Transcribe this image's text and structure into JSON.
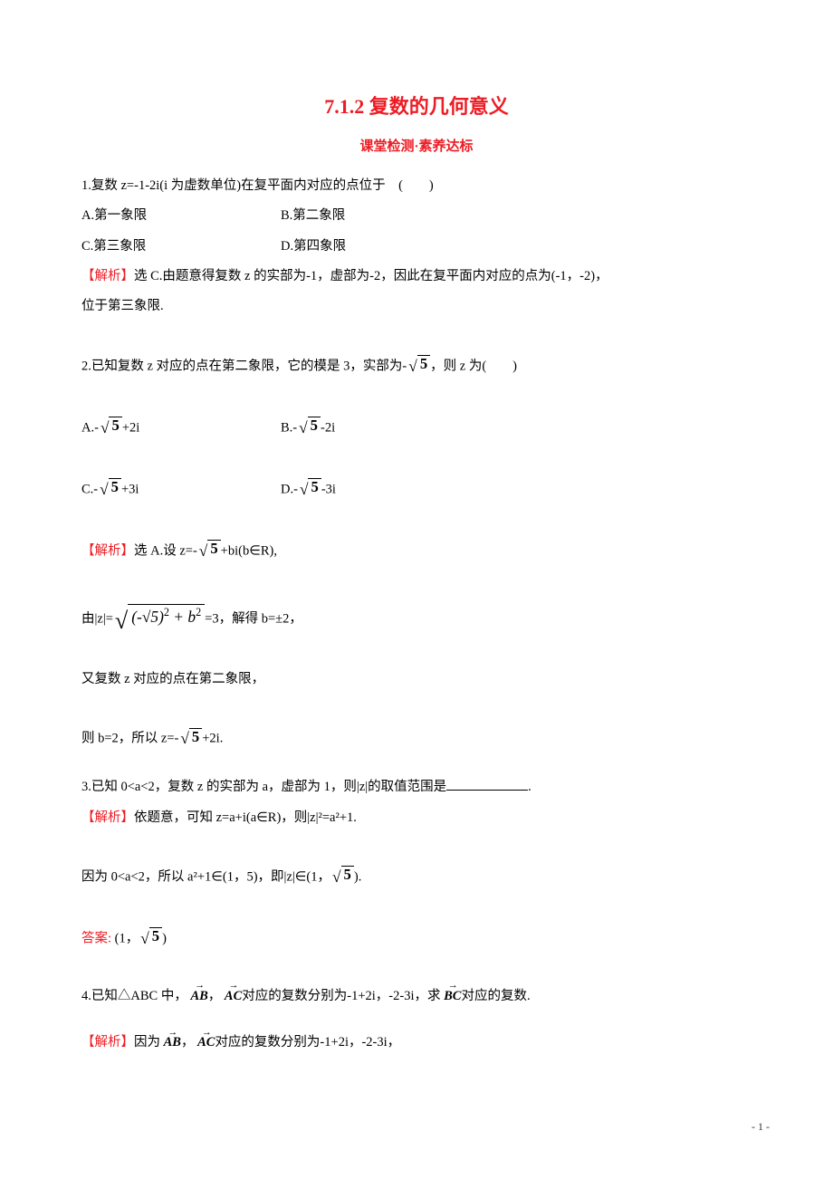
{
  "title": "7.1.2 复数的几何意义",
  "subtitle": "课堂检测·素养达标",
  "q1": {
    "stem": "1.复数 z=-1-2i(i 为虚数单位)在复平面内对应的点位于　(　　)",
    "optA_label": "A.第一象限",
    "optB_label": "B.第二象限",
    "optC_label": "C.第三象限",
    "optD_label": "D.第四象限",
    "ans_label": "【解析】",
    "ans_text_a": "选 C.由题意得复数 z 的实部为-1，虚部为-2，因此在复平面内对应的点为(-1，-2)，",
    "ans_text_b": "位于第三象限."
  },
  "q2": {
    "stem_a": "2.已知复数 z 对应的点在第二象限，它的模是 3，实部为-",
    "stem_b": "，则 z 为(　　)",
    "sqrt5": "5",
    "optA_pre": "A.-",
    "optA_post": "+2i",
    "optB_pre": "B.-",
    "optB_post": "-2i",
    "optC_pre": "C.-",
    "optC_post": "+3i",
    "optD_pre": "D.-",
    "optD_post": "-3i",
    "ans_label": "【解析】",
    "ans1_a": "选 A.设 z=-",
    "ans1_b": "+bi(b∈R),",
    "ans2_a": "由|z|=",
    "ans2_inner": "(-√5)",
    "ans2_mid": " + b",
    "ans2_b": "=3，解得 b=±2，",
    "ans3": "又复数 z 对应的点在第二象限，",
    "ans4_a": "则 b=2，所以 z=-",
    "ans4_b": "+2i."
  },
  "q3": {
    "stem": "3.已知 0<a<2，复数 z 的实部为 a，虚部为 1，则|z|的取值范围是",
    "ans_label": "【解析】",
    "ans1": "依题意，可知 z=a+i(a∈R)，则|z|²=a²+1.",
    "ans2_a": "因为 0<a<2，所以 a²+1∈(1，5)，即|z|∈(1，",
    "ans2_b": ").",
    "final_label": "答案:",
    "final_a": "(1，",
    "final_b": ")"
  },
  "q4": {
    "stem_a": "4.已知△ABC 中，",
    "stem_b": "，",
    "stem_c": "对应的复数分别为-1+2i，-2-3i，求 ",
    "stem_d": "对应的复数.",
    "vAB": "AB",
    "vAC": "AC",
    "vBC": "BC",
    "ans_label": "【解析】",
    "ans_a": "因为 ",
    "ans_b": "，",
    "ans_c": "对应的复数分别为-1+2i，-2-3i，"
  },
  "pagenum": "- 1 -",
  "colors": {
    "red": "#ed1c24",
    "text": "#000000",
    "bg": "#ffffff"
  }
}
